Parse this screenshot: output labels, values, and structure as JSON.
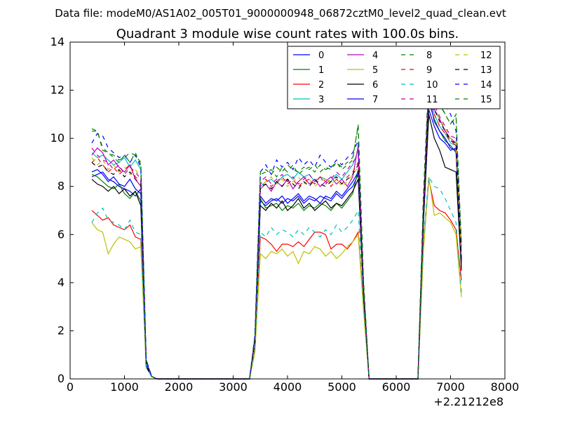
{
  "suptitle": "Data file: modeM0/AS1A02_005T01_9000000948_06872cztM0_level2_quad_clean.evt",
  "chart_data": {
    "type": "line",
    "title": "Quadrant 3 module wise count rates with 100.0s bins.",
    "xlabel": "",
    "ylabel": "",
    "x_offset_label": "+2.21212e8",
    "xlim": [
      0,
      8000
    ],
    "ylim": [
      0,
      14
    ],
    "x_ticks": [
      0,
      1000,
      2000,
      3000,
      4000,
      5000,
      6000,
      7000,
      8000
    ],
    "y_ticks": [
      0,
      2,
      4,
      6,
      8,
      10,
      12,
      14
    ],
    "grid": false,
    "legend_position": "top-right",
    "legend_columns": 4,
    "x": [
      400,
      500,
      600,
      700,
      800,
      900,
      1000,
      1100,
      1200,
      1300,
      1400,
      1500,
      1600,
      1700,
      2000,
      2500,
      3000,
      3200,
      3300,
      3400,
      3500,
      3600,
      3700,
      3800,
      3900,
      4000,
      4100,
      4200,
      4300,
      4400,
      4500,
      4600,
      4700,
      4800,
      4900,
      5000,
      5100,
      5200,
      5300,
      5400,
      5500,
      5600,
      6000,
      6400,
      6500,
      6600,
      6700,
      6800,
      6900,
      7000,
      7100,
      7200
    ],
    "series": [
      {
        "name": "0",
        "color": "#0000ff",
        "dash": "solid",
        "values": [
          8.4,
          8.5,
          8.6,
          8.3,
          8.2,
          8.0,
          7.9,
          7.8,
          7.6,
          7.9,
          0.6,
          0.1,
          0,
          0,
          0,
          0,
          0,
          0,
          0,
          1.5,
          7.4,
          7.2,
          7.4,
          7.5,
          7.3,
          7.5,
          7.4,
          7.6,
          7.3,
          7.5,
          7.4,
          7.6,
          7.5,
          7.4,
          7.7,
          7.5,
          7.8,
          8.0,
          8.5,
          3.5,
          0,
          0,
          0,
          0,
          6.5,
          11.2,
          10.5,
          10.0,
          9.8,
          9.5,
          9.6,
          4.8
        ]
      },
      {
        "name": "1",
        "color": "#008000",
        "dash": "solid",
        "values": [
          8.5,
          8.4,
          8.2,
          8.0,
          7.9,
          8.1,
          7.7,
          7.5,
          7.8,
          7.4,
          0.6,
          0.1,
          0,
          0,
          0,
          0,
          0,
          0,
          0,
          1.5,
          7.5,
          7.1,
          7.2,
          7.3,
          7.0,
          7.2,
          7.1,
          7.3,
          7.0,
          7.2,
          7.1,
          7.3,
          7.2,
          7.0,
          7.3,
          7.1,
          7.4,
          7.7,
          8.7,
          3.5,
          0,
          0,
          0,
          0,
          6.5,
          11.5,
          10.8,
          10.3,
          9.9,
          9.7,
          9.4,
          4.6
        ]
      },
      {
        "name": "2",
        "color": "#ff0000",
        "dash": "solid",
        "values": [
          7.0,
          6.8,
          6.6,
          6.7,
          6.4,
          6.3,
          6.2,
          6.4,
          5.9,
          5.8,
          0.5,
          0.1,
          0,
          0,
          0,
          0,
          0,
          0,
          0,
          1.2,
          5.9,
          5.8,
          5.6,
          5.3,
          5.6,
          5.6,
          5.5,
          5.7,
          5.5,
          5.8,
          6.1,
          6.1,
          6.0,
          5.4,
          5.6,
          5.6,
          5.4,
          5.7,
          6.1,
          3.0,
          0,
          0,
          0,
          0,
          5.5,
          8.3,
          7.2,
          7.0,
          6.9,
          6.6,
          6.2,
          4.1
        ]
      },
      {
        "name": "3",
        "color": "#00bfbf",
        "dash": "solid",
        "values": [
          9.4,
          9.2,
          9.3,
          9.1,
          8.9,
          9.0,
          9.2,
          8.8,
          9.1,
          8.7,
          0.7,
          0.1,
          0,
          0,
          0,
          0,
          0,
          0,
          0,
          1.6,
          8.0,
          8.2,
          8.3,
          8.1,
          8.4,
          8.5,
          8.3,
          8.6,
          8.4,
          8.5,
          8.2,
          8.4,
          8.3,
          8.2,
          8.5,
          8.3,
          8.6,
          8.9,
          9.5,
          3.8,
          0,
          0,
          0,
          0,
          7.0,
          12.0,
          11.0,
          10.5,
          10.2,
          9.8,
          9.7,
          5.0
        ]
      },
      {
        "name": "4",
        "color": "#bf00bf",
        "dash": "solid",
        "values": [
          9.3,
          9.6,
          9.4,
          8.9,
          9.1,
          8.8,
          8.6,
          8.9,
          8.3,
          8.0,
          0.6,
          0.1,
          0,
          0,
          0,
          0,
          0,
          0,
          0,
          1.6,
          7.9,
          8.1,
          7.8,
          8.2,
          8.0,
          8.3,
          7.9,
          8.2,
          8.4,
          8.1,
          8.3,
          8.0,
          8.2,
          8.4,
          8.1,
          8.3,
          8.0,
          8.4,
          9.7,
          3.7,
          0,
          0,
          0,
          0,
          7.0,
          12.3,
          11.2,
          10.8,
          10.3,
          10.0,
          9.8,
          5.0
        ]
      },
      {
        "name": "5",
        "color": "#bfbf00",
        "dash": "solid",
        "values": [
          6.5,
          6.2,
          6.1,
          5.2,
          5.6,
          5.9,
          5.8,
          5.7,
          5.4,
          5.5,
          0.5,
          0.1,
          0,
          0,
          0,
          0,
          0,
          0,
          0,
          1.1,
          5.2,
          5.0,
          5.3,
          5.2,
          5.4,
          5.1,
          5.3,
          4.8,
          5.3,
          5.2,
          5.5,
          5.4,
          5.1,
          5.3,
          5.0,
          5.2,
          5.5,
          5.7,
          6.0,
          2.8,
          0,
          0,
          0,
          0,
          5.3,
          8.4,
          6.8,
          6.9,
          6.7,
          6.5,
          6.0,
          3.4
        ]
      },
      {
        "name": "6",
        "color": "#000000",
        "dash": "solid",
        "values": [
          8.3,
          8.1,
          8.0,
          7.8,
          8.0,
          7.7,
          7.9,
          7.6,
          7.8,
          7.2,
          0.5,
          0.1,
          0,
          0,
          0,
          0,
          0,
          0,
          0,
          1.5,
          7.2,
          7.0,
          7.3,
          7.1,
          7.4,
          7.0,
          7.2,
          7.5,
          7.1,
          7.3,
          7.0,
          7.2,
          7.4,
          7.1,
          7.3,
          7.2,
          7.5,
          7.8,
          8.3,
          3.4,
          0,
          0,
          0,
          0,
          6.5,
          11.0,
          10.0,
          9.5,
          8.8,
          8.7,
          8.6,
          4.5
        ]
      },
      {
        "name": "7",
        "color": "#0000ff",
        "dash": "solid",
        "values": [
          8.6,
          8.7,
          8.5,
          8.2,
          8.4,
          8.1,
          8.0,
          8.3,
          7.9,
          7.7,
          0.6,
          0.1,
          0,
          0,
          0,
          0,
          0,
          0,
          0,
          1.5,
          7.6,
          7.3,
          7.5,
          7.4,
          7.6,
          7.3,
          7.5,
          7.7,
          7.4,
          7.6,
          7.5,
          7.3,
          7.6,
          7.5,
          7.8,
          7.6,
          7.9,
          8.2,
          8.6,
          3.6,
          0,
          0,
          0,
          0,
          6.8,
          11.8,
          10.7,
          10.3,
          10.0,
          9.6,
          9.5,
          4.9
        ]
      },
      {
        "name": "8",
        "color": "#008000",
        "dash": "dashed",
        "values": [
          10.4,
          10.3,
          9.5,
          9.4,
          9.2,
          9.0,
          9.3,
          9.0,
          9.4,
          8.9,
          0.8,
          0.1,
          0,
          0,
          0,
          0,
          0,
          0,
          0,
          1.8,
          8.5,
          8.6,
          8.7,
          8.4,
          8.8,
          8.6,
          8.9,
          8.5,
          8.7,
          8.8,
          8.6,
          8.9,
          8.7,
          8.8,
          9.0,
          8.7,
          8.9,
          9.1,
          10.6,
          4.0,
          0,
          0,
          0,
          0,
          7.5,
          12.5,
          11.8,
          11.5,
          11.0,
          10.6,
          10.9,
          5.5
        ]
      },
      {
        "name": "9",
        "color": "#ff0000",
        "dash": "dashed",
        "values": [
          9.0,
          9.2,
          8.9,
          8.6,
          8.8,
          8.5,
          8.7,
          8.9,
          8.4,
          8.2,
          0.7,
          0.1,
          0,
          0,
          0,
          0,
          0,
          0,
          0,
          1.6,
          8.1,
          8.3,
          8.0,
          8.2,
          8.4,
          8.1,
          8.3,
          8.0,
          8.2,
          8.3,
          8.1,
          8.4,
          8.2,
          8.0,
          8.3,
          8.1,
          8.4,
          8.6,
          9.0,
          3.7,
          0,
          0,
          0,
          0,
          7.0,
          11.8,
          11.0,
          10.5,
          10.2,
          9.9,
          9.7,
          5.0
        ]
      },
      {
        "name": "10",
        "color": "#00bfbf",
        "dash": "dashed",
        "values": [
          6.5,
          6.9,
          7.1,
          6.6,
          6.5,
          6.4,
          6.2,
          6.6,
          6.1,
          6.0,
          0.5,
          0.1,
          0,
          0,
          0,
          0,
          0,
          0,
          0,
          1.3,
          6.1,
          5.9,
          6.3,
          6.0,
          6.2,
          6.1,
          5.9,
          6.2,
          6.0,
          6.3,
          6.1,
          5.9,
          6.2,
          6.0,
          6.4,
          6.1,
          6.3,
          6.6,
          7.0,
          3.1,
          0,
          0,
          0,
          0,
          5.8,
          8.4,
          8.0,
          7.9,
          7.5,
          7.0,
          6.5,
          3.6
        ]
      },
      {
        "name": "11",
        "color": "#bf00bf",
        "dash": "dashed",
        "values": [
          9.6,
          9.3,
          9.1,
          9.0,
          8.7,
          8.9,
          8.5,
          8.8,
          8.6,
          8.3,
          0.7,
          0.1,
          0,
          0,
          0,
          0,
          0,
          0,
          0,
          1.7,
          8.2,
          8.4,
          8.1,
          8.3,
          8.5,
          8.2,
          8.4,
          8.1,
          8.3,
          8.5,
          8.2,
          8.4,
          8.1,
          8.3,
          8.6,
          8.4,
          8.7,
          9.0,
          9.3,
          3.8,
          0,
          0,
          0,
          0,
          7.2,
          12.2,
          11.4,
          10.9,
          10.5,
          10.1,
          10.0,
          5.2
        ]
      },
      {
        "name": "12",
        "color": "#bfbf00",
        "dash": "dashed",
        "values": [
          9.2,
          8.9,
          9.1,
          8.7,
          8.9,
          8.6,
          8.8,
          8.5,
          8.7,
          8.4,
          0.7,
          0.1,
          0,
          0,
          0,
          0,
          0,
          0,
          0,
          1.6,
          8.0,
          8.2,
          8.4,
          8.1,
          8.3,
          8.0,
          8.2,
          8.4,
          8.1,
          8.3,
          8.0,
          8.2,
          8.4,
          8.1,
          8.3,
          8.0,
          8.2,
          8.5,
          8.8,
          3.7,
          0,
          0,
          0,
          0,
          7.0,
          12.0,
          11.3,
          10.8,
          10.4,
          10.0,
          9.9,
          5.1
        ]
      },
      {
        "name": "13",
        "color": "#000000",
        "dash": "dashed",
        "values": [
          9.0,
          8.8,
          8.9,
          8.6,
          8.5,
          8.7,
          8.4,
          8.6,
          8.3,
          8.1,
          0.7,
          0.1,
          0,
          0,
          0,
          0,
          0,
          0,
          0,
          1.6,
          8.0,
          8.1,
          7.9,
          8.2,
          8.0,
          8.3,
          8.1,
          7.9,
          8.2,
          8.0,
          8.3,
          8.1,
          8.0,
          8.2,
          8.4,
          8.1,
          8.3,
          8.5,
          8.9,
          3.6,
          0,
          0,
          0,
          0,
          7.0,
          11.9,
          11.2,
          10.7,
          10.3,
          9.9,
          9.8,
          5.0
        ]
      },
      {
        "name": "14",
        "color": "#0000ff",
        "dash": "dashed",
        "values": [
          9.8,
          10.2,
          10.1,
          9.6,
          9.4,
          9.2,
          9.3,
          9.0,
          9.3,
          8.8,
          0.8,
          0.1,
          0,
          0,
          0,
          0,
          0,
          0,
          0,
          1.8,
          8.6,
          8.9,
          8.5,
          9.1,
          8.8,
          9.0,
          8.7,
          9.2,
          8.9,
          9.1,
          8.8,
          9.3,
          9.0,
          8.8,
          9.1,
          8.9,
          9.2,
          9.4,
          9.9,
          4.0,
          0,
          0,
          0,
          0,
          7.6,
          12.6,
          12.2,
          11.8,
          11.4,
          11.0,
          10.3,
          5.6
        ]
      },
      {
        "name": "15",
        "color": "#008000",
        "dash": "dashed",
        "values": [
          10.3,
          10.3,
          9.6,
          9.4,
          9.3,
          9.1,
          9.2,
          9.4,
          9.3,
          9.0,
          0.8,
          0.1,
          0,
          0,
          0,
          0,
          0,
          0,
          0,
          1.8,
          8.6,
          8.7,
          8.5,
          8.8,
          8.6,
          8.9,
          8.7,
          8.6,
          8.8,
          8.7,
          8.9,
          8.6,
          8.8,
          8.7,
          9.0,
          8.8,
          9.0,
          9.2,
          10.5,
          4.0,
          0,
          0,
          0,
          0,
          7.6,
          12.4,
          11.8,
          11.4,
          11.0,
          10.6,
          11.0,
          5.5
        ]
      }
    ]
  }
}
